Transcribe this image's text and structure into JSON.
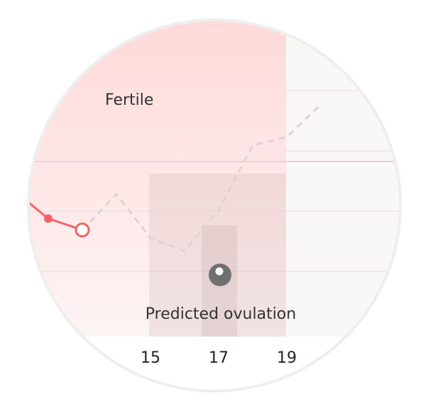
{
  "chart_data": {
    "type": "line",
    "x_ticks": [
      15,
      17,
      19
    ],
    "fertile_label": "Fertile",
    "ovulation_label": "Predicted ovulation",
    "fertile_window": [
      11,
      19
    ],
    "ovulation_window": [
      15,
      19
    ],
    "predicted_ovulation_day": 17,
    "recorded_series": {
      "x": [
        11,
        12,
        13
      ],
      "y": [
        0.62,
        0.45,
        0.38
      ],
      "style": "solid"
    },
    "predicted_series": {
      "x": [
        13,
        14,
        15,
        16,
        17,
        18,
        19,
        20
      ],
      "y": [
        0.38,
        0.6,
        0.33,
        0.25,
        0.5,
        0.9,
        0.95,
        1.15
      ],
      "style": "dashed"
    },
    "grid": true,
    "colors": {
      "recorded": "#f46464",
      "predicted": "#ddd3d4",
      "fertile": "#fde3e3",
      "ovulation_icon": "#707070",
      "cover_line": "#e6d1d4"
    }
  }
}
